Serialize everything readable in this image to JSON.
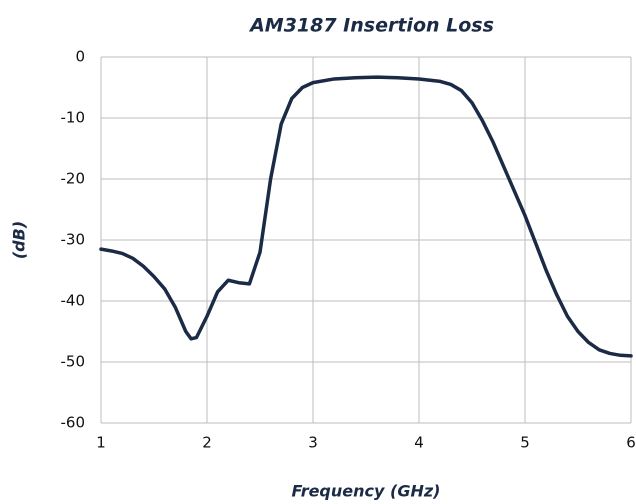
{
  "chart_data": {
    "type": "line",
    "title": "AM3187 Insertion Loss",
    "x_label": "Frequency (GHz)",
    "y_label": "(dB)",
    "xlim": [
      1,
      6
    ],
    "xticks": [
      1,
      2,
      3,
      4,
      5,
      6
    ],
    "ylim": [
      -60,
      0
    ],
    "yticks": [
      0,
      -10,
      -20,
      -30,
      -40,
      -50,
      -60
    ],
    "grid": true,
    "x": [
      1.0,
      1.1,
      1.2,
      1.3,
      1.4,
      1.5,
      1.6,
      1.7,
      1.8,
      1.85,
      1.9,
      2.0,
      2.1,
      2.2,
      2.3,
      2.4,
      2.5,
      2.6,
      2.7,
      2.8,
      2.9,
      3.0,
      3.2,
      3.4,
      3.6,
      3.8,
      4.0,
      4.2,
      4.3,
      4.4,
      4.5,
      4.6,
      4.7,
      4.8,
      4.9,
      5.0,
      5.1,
      5.2,
      5.3,
      5.4,
      5.5,
      5.6,
      5.7,
      5.8,
      5.9,
      6.0
    ],
    "series": [
      {
        "name": "Insertion Loss",
        "color": "#1b2a45",
        "values": [
          -31.5,
          -31.8,
          -32.2,
          -33,
          -34.3,
          -36,
          -38,
          -41,
          -45,
          -46.2,
          -46,
          -42.5,
          -38.5,
          -36.6,
          -37,
          -37.2,
          -32,
          -20,
          -11,
          -6.8,
          -5,
          -4.2,
          -3.6,
          -3.4,
          -3.3,
          -3.4,
          -3.6,
          -4.0,
          -4.5,
          -5.5,
          -7.5,
          -10.5,
          -14,
          -18,
          -22,
          -26,
          -30.5,
          -35,
          -39,
          -42.5,
          -45,
          -46.8,
          -48,
          -48.6,
          -48.9,
          -49
        ]
      }
    ]
  }
}
